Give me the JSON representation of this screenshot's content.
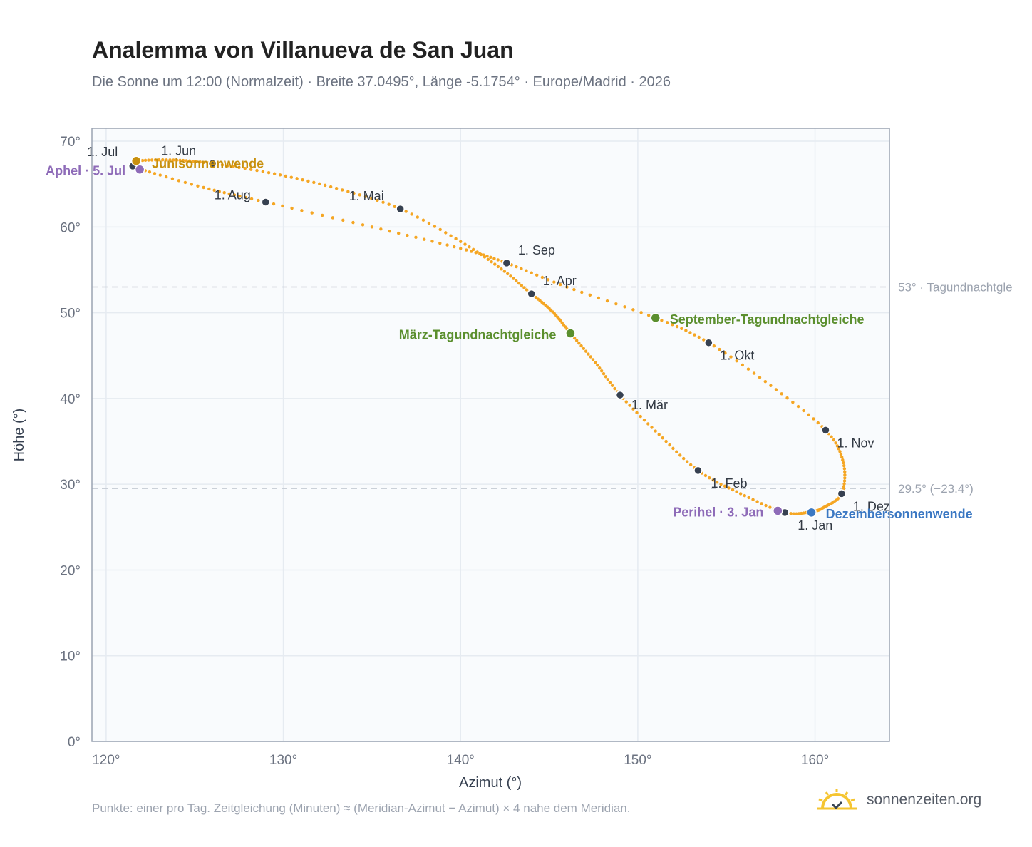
{
  "header": {
    "title": "Analemma von Villanueva de San Juan",
    "subtitle": "Die Sonne um 12:00 (Normalzeit) · Breite 37.0495°, Länge -5.1754° · Europe/Madrid · 2026"
  },
  "footer": {
    "note": "Punkte: einer pro Tag. Zeitgleichung (Minuten) ≈ (Meridian-Azimut − Azimut) × 4 nahe dem Meridian.",
    "brand": "sonnenzeiten.org"
  },
  "colors": {
    "curve": "#f5a623",
    "month_dot": "#374151",
    "solstice_june": "#c8900e",
    "solstice_december": "#3b78c3",
    "equinox": "#5b8f2e",
    "aphel_perihel": "#8e6bb8",
    "reference_line": "#c4cad3",
    "grid": "#e6ebf1",
    "plot_background": "#f9fbfd",
    "frame": "#9aa3b2"
  },
  "chart_data": {
    "type": "scatter",
    "title": "Analemma von Villanueva de San Juan",
    "xlabel": "Azimut (°)",
    "ylabel": "Höhe (°)",
    "xlim": [
      119.2,
      164.2
    ],
    "ylim": [
      0,
      71.5
    ],
    "x_ticks": [
      120,
      130,
      140,
      150,
      160
    ],
    "x_tick_labels": [
      "120°",
      "130°",
      "140°",
      "150°",
      "160°"
    ],
    "y_ticks": [
      0,
      10,
      20,
      30,
      40,
      50,
      60,
      70
    ],
    "y_tick_labels": [
      "0°",
      "10°",
      "20°",
      "30°",
      "40°",
      "50°",
      "60°",
      "70°"
    ],
    "grid": true,
    "series": [
      {
        "kind": "daily-path",
        "points": [
          [
            158.3,
            26.7
          ],
          [
            155.8,
            28.9
          ],
          [
            153.4,
            31.6
          ],
          [
            151.2,
            35.8
          ],
          [
            149.0,
            40.4
          ],
          [
            147.6,
            44.2
          ],
          [
            146.2,
            47.6
          ],
          [
            145.2,
            50.1
          ],
          [
            144.0,
            52.2
          ],
          [
            142.3,
            55.1
          ],
          [
            140.0,
            58.3
          ],
          [
            136.6,
            62.1
          ],
          [
            133.0,
            64.5
          ],
          [
            129.5,
            66.2
          ],
          [
            126.0,
            67.4
          ],
          [
            123.8,
            67.8
          ],
          [
            121.8,
            67.7
          ],
          [
            121.5,
            67.1
          ],
          [
            122.0,
            66.7
          ],
          [
            125.5,
            64.6
          ],
          [
            129.0,
            62.9
          ],
          [
            135.0,
            60.0
          ],
          [
            140.0,
            57.5
          ],
          [
            142.6,
            55.8
          ],
          [
            146.0,
            53.0
          ],
          [
            151.0,
            49.4
          ],
          [
            154.0,
            46.5
          ],
          [
            157.5,
            41.5
          ],
          [
            160.6,
            36.3
          ],
          [
            161.6,
            32.5
          ],
          [
            161.5,
            28.9
          ],
          [
            160.5,
            27.3
          ],
          [
            159.8,
            26.8
          ],
          [
            158.3,
            26.7
          ]
        ]
      }
    ],
    "month_markers": [
      {
        "label": "1. Jan",
        "x": 158.3,
        "y": 26.7
      },
      {
        "label": "1. Feb",
        "x": 153.4,
        "y": 31.6
      },
      {
        "label": "1. Mär",
        "x": 149.0,
        "y": 40.4
      },
      {
        "label": "1. Apr",
        "x": 144.0,
        "y": 52.2
      },
      {
        "label": "1. Mai",
        "x": 136.6,
        "y": 62.1
      },
      {
        "label": "1. Jun",
        "x": 126.0,
        "y": 67.4
      },
      {
        "label": "1. Jul",
        "x": 121.5,
        "y": 67.1
      },
      {
        "label": "1. Aug",
        "x": 129.0,
        "y": 62.9
      },
      {
        "label": "1. Sep",
        "x": 142.6,
        "y": 55.8
      },
      {
        "label": "1. Okt",
        "x": 154.0,
        "y": 46.5
      },
      {
        "label": "1. Nov",
        "x": 160.6,
        "y": 36.3
      },
      {
        "label": "1. Dez",
        "x": 161.5,
        "y": 28.9
      }
    ],
    "events": [
      {
        "label": "Junisonnenwende",
        "x": 121.7,
        "y": 67.7,
        "color_key": "solstice_june"
      },
      {
        "label": "Aphel · 5. Jul",
        "x": 121.9,
        "y": 66.7,
        "color_key": "aphel_perihel"
      },
      {
        "label": "März-Tagundnachtgleiche",
        "x": 146.2,
        "y": 47.6,
        "color_key": "equinox"
      },
      {
        "label": "September-Tagundnachtgleiche",
        "x": 151.0,
        "y": 49.4,
        "color_key": "equinox"
      },
      {
        "label": "Perihel · 3. Jan",
        "x": 157.9,
        "y": 26.9,
        "color_key": "aphel_perihel"
      },
      {
        "label": "Dezembersonnenwende",
        "x": 159.8,
        "y": 26.7,
        "color_key": "solstice_december"
      }
    ],
    "reference_lines": [
      {
        "y": 53.0,
        "label": "53° · Tagundnachtgle"
      },
      {
        "y": 29.5,
        "label": "29.5° (−23.4°)"
      }
    ]
  }
}
